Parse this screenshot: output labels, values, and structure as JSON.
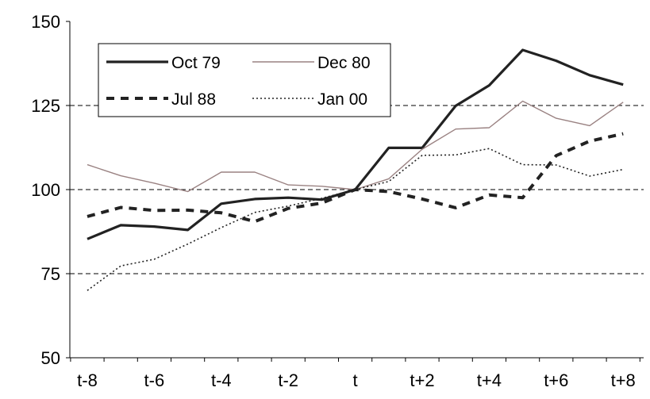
{
  "chart_data": {
    "type": "line",
    "title": "",
    "xlabel": "",
    "ylabel": "",
    "x": [
      "t-8",
      "t-7",
      "t-6",
      "t-5",
      "t-4",
      "t-3",
      "t-2",
      "t-1",
      "t",
      "t+1",
      "t+2",
      "t+3",
      "t+4",
      "t+5",
      "t+6",
      "t+7",
      "t+8"
    ],
    "x_tick_labels": [
      "t-8",
      "t-6",
      "t-4",
      "t-2",
      "t",
      "t+2",
      "t+4",
      "t+6",
      "t+8"
    ],
    "ylim": [
      50,
      150
    ],
    "y_ticks": [
      50,
      75,
      100,
      125,
      150
    ],
    "grid": "horizontal dashed at 75, 100, 125",
    "legend_position": "top-left",
    "series": [
      {
        "name": "Oct 79",
        "style": "solid-thick",
        "color": "#222222",
        "values": [
          85.3,
          89.4,
          89.0,
          88.0,
          95.8,
          97.2,
          97.6,
          97.0,
          100.0,
          112.4,
          112.4,
          124.9,
          131.0,
          141.5,
          138.3,
          134.0,
          131.2
        ]
      },
      {
        "name": "Dec 80",
        "style": "solid-thin",
        "color": "#9a8282",
        "values": [
          107.4,
          104.1,
          101.9,
          99.4,
          105.2,
          105.2,
          101.4,
          101.0,
          100.0,
          103.2,
          112.0,
          118.0,
          118.4,
          126.3,
          121.2,
          119.0,
          126.0
        ]
      },
      {
        "name": "Jul 88",
        "style": "dashed-thick",
        "color": "#222222",
        "values": [
          92.0,
          94.7,
          93.8,
          93.9,
          93.1,
          90.5,
          94.4,
          96.0,
          100.0,
          99.4,
          97.2,
          94.6,
          98.4,
          97.6,
          110.1,
          114.4,
          116.6
        ]
      },
      {
        "name": "Jan 00",
        "style": "dotted",
        "color": "#222222",
        "values": [
          70.0,
          77.3,
          79.3,
          83.8,
          88.7,
          93.2,
          95.1,
          97.4,
          100.0,
          102.4,
          110.2,
          110.3,
          112.2,
          107.4,
          107.3,
          104.0,
          106.0
        ]
      }
    ]
  }
}
